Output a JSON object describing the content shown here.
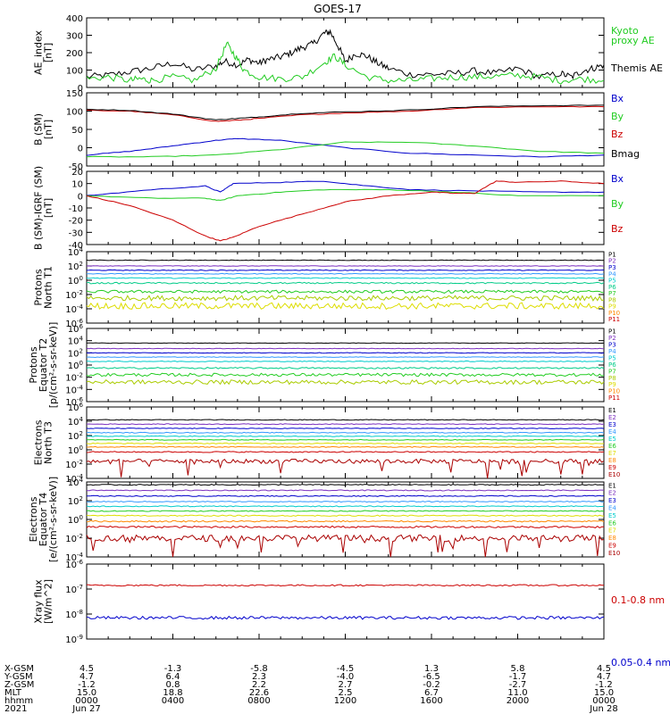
{
  "title": "GOES-17",
  "chart_data": [
    {
      "type": "line",
      "id": "ae",
      "ylabel": [
        "AE_index",
        "[nT]"
      ],
      "ylim": [
        0,
        400
      ],
      "yticks": [
        {
          "v": 0,
          "t": "0"
        },
        {
          "v": 100,
          "t": "100"
        },
        {
          "v": 200,
          "t": "200"
        },
        {
          "v": 300,
          "t": "300"
        },
        {
          "v": 400,
          "t": "400"
        }
      ],
      "series": [
        {
          "name": "Themis AE",
          "color": "#000000",
          "x": [
            0,
            1,
            2,
            3,
            4,
            5,
            6,
            6.4,
            7,
            7.5,
            8,
            8.4,
            9,
            9.5,
            10,
            10.5,
            11,
            11.3,
            11.7,
            12,
            12.5,
            13,
            13.5,
            14,
            15,
            16,
            17,
            18,
            19,
            20,
            21,
            22,
            22.5,
            23,
            23.5,
            24
          ],
          "values": [
            60,
            70,
            90,
            110,
            140,
            100,
            125,
            150,
            130,
            160,
            140,
            160,
            175,
            200,
            230,
            250,
            310,
            320,
            230,
            150,
            195,
            180,
            140,
            110,
            75,
            75,
            80,
            95,
            80,
            110,
            60,
            80,
            60,
            95,
            110,
            130
          ]
        },
        {
          "name": "Kyoto proxy AE",
          "color": "#22cc22",
          "x": [
            0,
            1,
            2,
            2.5,
            3,
            4,
            5,
            6,
            6.5,
            6.9,
            7.3,
            8,
            9,
            10,
            11,
            11.5,
            12,
            13,
            14,
            15,
            16,
            17,
            18,
            19,
            20,
            21,
            22,
            23,
            24
          ],
          "values": [
            50,
            60,
            40,
            50,
            40,
            60,
            40,
            110,
            250,
            180,
            100,
            60,
            50,
            60,
            140,
            180,
            130,
            60,
            40,
            40,
            50,
            60,
            60,
            65,
            70,
            60,
            40,
            50,
            40
          ]
        }
      ],
      "labels": [
        {
          "t": "Kyoto",
          "c": "#22cc22",
          "y": 38
        },
        {
          "t": "proxy AE",
          "c": "#22cc22",
          "y": 49
        },
        {
          "t": "Themis AE",
          "c": "#000000",
          "y": 80
        }
      ]
    },
    {
      "type": "line",
      "id": "bsm",
      "ylabel": [
        "B (SM)",
        "[nT]"
      ],
      "ylim": [
        -50,
        150
      ],
      "yticks": [
        {
          "v": -50,
          "t": "-50"
        },
        {
          "v": 0,
          "t": "0"
        },
        {
          "v": 50,
          "t": "50"
        },
        {
          "v": 100,
          "t": "100"
        },
        {
          "v": 150,
          "t": "150"
        }
      ],
      "series": [
        {
          "name": "Bx",
          "color": "#0000cc",
          "x": [
            0,
            2,
            4,
            6,
            7,
            9,
            12,
            15,
            18,
            21,
            24
          ],
          "values": [
            -20,
            -10,
            5,
            20,
            25,
            20,
            0,
            -15,
            -20,
            -25,
            -20
          ]
        },
        {
          "name": "By",
          "color": "#22cc22",
          "x": [
            0,
            3,
            6,
            9,
            12,
            15,
            18,
            21,
            24
          ],
          "values": [
            -25,
            -25,
            -20,
            -5,
            15,
            15,
            5,
            -10,
            -15
          ]
        },
        {
          "name": "Bz",
          "color": "#cc0000",
          "x": [
            0,
            2,
            4,
            6,
            7,
            8,
            10,
            12,
            15,
            18,
            21,
            24
          ],
          "values": [
            102,
            100,
            90,
            72,
            75,
            80,
            90,
            95,
            100,
            110,
            112,
            112
          ]
        },
        {
          "name": "Bmag",
          "color": "#000000",
          "x": [
            0,
            2,
            4,
            6,
            7,
            8,
            10,
            12,
            15,
            18,
            21,
            24
          ],
          "values": [
            105,
            102,
            92,
            76,
            80,
            84,
            94,
            98,
            103,
            112,
            115,
            116
          ]
        }
      ],
      "labels": [
        {
          "t": "Bx",
          "c": "#0000cc",
          "y": 114
        },
        {
          "t": "By",
          "c": "#22cc22",
          "y": 134
        },
        {
          "t": "Bz",
          "c": "#cc0000",
          "y": 154
        },
        {
          "t": "Bmag",
          "c": "#000000",
          "y": 176
        }
      ]
    },
    {
      "type": "line",
      "id": "bigrf",
      "ylabel": [
        "B (SM)-IGRF (SM)",
        "[nT]"
      ],
      "ylim": [
        -40,
        20
      ],
      "yticks": [
        {
          "v": -40,
          "t": "-40"
        },
        {
          "v": -30,
          "t": "-30"
        },
        {
          "v": -20,
          "t": "-20"
        },
        {
          "v": -10,
          "t": "-10"
        },
        {
          "v": 0,
          "t": "0"
        },
        {
          "v": 10,
          "t": "10"
        },
        {
          "v": 20,
          "t": "20"
        }
      ],
      "series": [
        {
          "name": "Bx",
          "color": "#0000cc",
          "x": [
            0,
            3,
            5.5,
            6.2,
            6.8,
            9,
            11,
            12.5,
            15,
            18,
            21,
            24
          ],
          "values": [
            0,
            5,
            8,
            3,
            10,
            11,
            12,
            9,
            5,
            4,
            3,
            3
          ]
        },
        {
          "name": "By",
          "color": "#22cc22",
          "x": [
            0,
            3,
            5.5,
            6.2,
            7,
            9,
            11,
            14,
            17,
            20,
            24
          ],
          "values": [
            0,
            -2,
            -2,
            -4,
            0,
            3,
            5,
            5,
            3,
            0,
            0
          ]
        },
        {
          "name": "Bz",
          "color": "#cc0000",
          "x": [
            0,
            2,
            4,
            5.5,
            6.2,
            6.8,
            8,
            10,
            12,
            14,
            16,
            17,
            18,
            19,
            20,
            22,
            24
          ],
          "values": [
            0,
            -8,
            -20,
            -33,
            -37,
            -34,
            -25,
            -15,
            -5,
            0,
            3,
            2,
            2,
            12,
            11,
            12,
            10
          ]
        }
      ],
      "labels": [
        {
          "t": "Bx",
          "c": "#0000cc",
          "y": 204
        },
        {
          "t": "By",
          "c": "#22cc22",
          "y": 232
        },
        {
          "t": "Bz",
          "c": "#cc0000",
          "y": 260
        }
      ]
    },
    {
      "type": "line",
      "id": "pnorth",
      "log": true,
      "ylabel": [
        "Protons",
        "North T1"
      ],
      "ylim": [
        -6,
        4
      ],
      "yticks": [
        {
          "v": 4,
          "t": "10^4"
        },
        {
          "v": 2,
          "t": "10^2"
        },
        {
          "v": 0,
          "t": "10^0"
        },
        {
          "v": -2,
          "t": "10^-2"
        },
        {
          "v": -4,
          "t": "10^-4"
        },
        {
          "v": -6,
          "t": "10^-6"
        }
      ],
      "series": [
        {
          "name": "P1",
          "color": "#000000",
          "level": 2.8,
          "noise": 0.04
        },
        {
          "name": "P2",
          "color": "#7b2fbe",
          "level": 2.0,
          "noise": 0.04
        },
        {
          "name": "P3",
          "color": "#0000cc",
          "level": 1.4,
          "noise": 0.05
        },
        {
          "name": "P4",
          "color": "#3399ff",
          "level": 0.9,
          "noise": 0.05
        },
        {
          "name": "P5",
          "color": "#00cccc",
          "level": 0.3,
          "noise": 0.06
        },
        {
          "name": "P6",
          "color": "#00cc88",
          "level": -0.4,
          "noise": 0.1
        },
        {
          "name": "P7",
          "color": "#22cc22",
          "level": -1.6,
          "noise": 0.2
        },
        {
          "name": "P8",
          "color": "#aacc00",
          "level": -2.5,
          "noise": 0.35
        },
        {
          "name": "P9",
          "color": "#dddd00",
          "level": -3.6,
          "noise": 0.45
        },
        {
          "name": "P10",
          "color": "#ff8800",
          "level": null
        },
        {
          "name": "P11",
          "color": "#cc0000",
          "level": null
        }
      ]
    },
    {
      "type": "line",
      "id": "pequator",
      "log": true,
      "ylabel": [
        "Protons",
        "Equator T2",
        "[p/(cm²-s-sr-keV)]"
      ],
      "ylim": [
        -6,
        6
      ],
      "yticks": [
        {
          "v": 6,
          "t": "10^6"
        },
        {
          "v": 4,
          "t": "10^4"
        },
        {
          "v": 2,
          "t": "10^2"
        },
        {
          "v": 0,
          "t": "10^0"
        },
        {
          "v": -2,
          "t": "10^-2"
        },
        {
          "v": -4,
          "t": "10^-4"
        },
        {
          "v": -6,
          "t": "10^-6"
        }
      ],
      "series": [
        {
          "name": "P1",
          "color": "#000000",
          "level": 3.6,
          "noise": 0.04
        },
        {
          "name": "P2",
          "color": "#7b2fbe",
          "level": 2.7,
          "noise": 0.04
        },
        {
          "name": "P3",
          "color": "#0000cc",
          "level": 2.0,
          "noise": 0.05
        },
        {
          "name": "P4",
          "color": "#3399ff",
          "level": 1.3,
          "noise": 0.05
        },
        {
          "name": "P5",
          "color": "#00cccc",
          "level": 0.6,
          "noise": 0.07
        },
        {
          "name": "P6",
          "color": "#00cc88",
          "level": -0.5,
          "noise": 0.12
        },
        {
          "name": "P7",
          "color": "#22cc22",
          "level": -1.6,
          "noise": 0.25
        },
        {
          "name": "P8",
          "color": "#aacc00",
          "level": -2.8,
          "noise": 0.35
        },
        {
          "name": "P9",
          "color": "#dddd00",
          "level": null
        },
        {
          "name": "P10",
          "color": "#ff8800",
          "level": null
        },
        {
          "name": "P11",
          "color": "#cc0000",
          "level": null
        }
      ]
    },
    {
      "type": "line",
      "id": "enorth",
      "log": true,
      "ylabel": [
        "Electrons",
        "North T3"
      ],
      "ylim": [
        -4,
        6
      ],
      "yticks": [
        {
          "v": 6,
          "t": "10^6"
        },
        {
          "v": 4,
          "t": "10^4"
        },
        {
          "v": 2,
          "t": "10^2"
        },
        {
          "v": 0,
          "t": "10^0"
        },
        {
          "v": -2,
          "t": "10^-2"
        },
        {
          "v": -4,
          "t": "10^-4"
        }
      ],
      "series": [
        {
          "name": "E1",
          "color": "#000000",
          "level": 4.2,
          "noise": 0.05
        },
        {
          "name": "E2",
          "color": "#7b2fbe",
          "level": 3.6,
          "noise": 0.05
        },
        {
          "name": "E3",
          "color": "#0000cc",
          "level": 3.0,
          "noise": 0.05
        },
        {
          "name": "E4",
          "color": "#3399ff",
          "level": 2.4,
          "noise": 0.05
        },
        {
          "name": "E5",
          "color": "#00cccc",
          "level": 1.9,
          "noise": 0.05
        },
        {
          "name": "E6",
          "color": "#22cc22",
          "level": 1.4,
          "noise": 0.05
        },
        {
          "name": "E7",
          "color": "#dddd00",
          "level": 0.9,
          "noise": 0.06
        },
        {
          "name": "E8",
          "color": "#ff8800",
          "level": 0.4,
          "noise": 0.06
        },
        {
          "name": "E9",
          "color": "#cc0000",
          "level": -0.3,
          "noise": 0.08
        },
        {
          "name": "E10",
          "color": "#aa0000",
          "level": -1.6,
          "noise": 0.3,
          "spiky": true
        }
      ]
    },
    {
      "type": "line",
      "id": "eequator",
      "log": true,
      "ylabel": [
        "Electrons",
        "Equator T4",
        "[e/(cm²-s-sr-keV)]"
      ],
      "ylim": [
        -4,
        4
      ],
      "yticks": [
        {
          "v": 4,
          "t": "10^4"
        },
        {
          "v": 2,
          "t": "10^2"
        },
        {
          "v": 0,
          "t": "10^0"
        },
        {
          "v": -2,
          "t": "10^-2"
        },
        {
          "v": -4,
          "t": "10^-4"
        }
      ],
      "series": [
        {
          "name": "E1",
          "color": "#000000",
          "level": 3.7,
          "noise": 0.05
        },
        {
          "name": "E2",
          "color": "#7b2fbe",
          "level": 3.1,
          "noise": 0.05
        },
        {
          "name": "E3",
          "color": "#0000cc",
          "level": 2.5,
          "noise": 0.05
        },
        {
          "name": "E4",
          "color": "#3399ff",
          "level": 1.9,
          "noise": 0.05
        },
        {
          "name": "E5",
          "color": "#00cccc",
          "level": 1.4,
          "noise": 0.05
        },
        {
          "name": "E6",
          "color": "#22cc22",
          "level": 0.9,
          "noise": 0.05
        },
        {
          "name": "E7",
          "color": "#dddd00",
          "level": 0.4,
          "noise": 0.06
        },
        {
          "name": "E8",
          "color": "#ff8800",
          "level": -0.2,
          "noise": 0.08
        },
        {
          "name": "E9",
          "color": "#cc0000",
          "level": -0.8,
          "noise": 0.1
        },
        {
          "name": "E10",
          "color": "#aa0000",
          "level": -2.0,
          "noise": 0.35,
          "spiky": true
        }
      ]
    },
    {
      "type": "line",
      "id": "xray",
      "log": true,
      "ylabel": [
        "Xray flux",
        "[W/m^2]"
      ],
      "ylim": [
        -9,
        -6
      ],
      "yticks": [
        {
          "v": -6,
          "t": "10^-6"
        },
        {
          "v": -7,
          "t": "10^-7"
        },
        {
          "v": -8,
          "t": "10^-8"
        },
        {
          "v": -9,
          "t": "10^-9"
        }
      ],
      "series": [
        {
          "name": "0.1-0.8 nm",
          "color": "#cc0000",
          "level": -6.85,
          "noise": 0.03
        },
        {
          "name": "0.05-0.4 nm",
          "color": "#0000cc",
          "level": -8.15,
          "noise": 0.06
        }
      ],
      "labels": [
        {
          "t": "0.1-0.8 nm",
          "c": "#cc0000",
          "y": 676
        },
        {
          "t": "0.05-0.4 nm",
          "c": "#0000cc",
          "y": 746
        }
      ]
    }
  ],
  "xaxis": {
    "row_labels": [
      "X-GSM",
      "Y-GSM",
      "Z-GSM",
      "MLT",
      "hhmm",
      "2021"
    ],
    "columns": [
      [
        "4.5",
        "4.7",
        "-1.2",
        "15.0",
        "0000",
        "Jun 27"
      ],
      [
        "-1.3",
        "6.4",
        "0.8",
        "18.8",
        "0400",
        ""
      ],
      [
        "-5.8",
        "2.3",
        "2.2",
        "22.6",
        "0800",
        ""
      ],
      [
        "-4.5",
        "-4.0",
        "2.7",
        "2.5",
        "1200",
        ""
      ],
      [
        "1.3",
        "-6.5",
        "-0.2",
        "6.7",
        "1600",
        ""
      ],
      [
        "5.8",
        "-1.7",
        "-2.7",
        "11.0",
        "2000",
        ""
      ],
      [
        "4.5",
        "4.7",
        "-1.2",
        "15.0",
        "0000",
        "Jun 28"
      ]
    ]
  }
}
